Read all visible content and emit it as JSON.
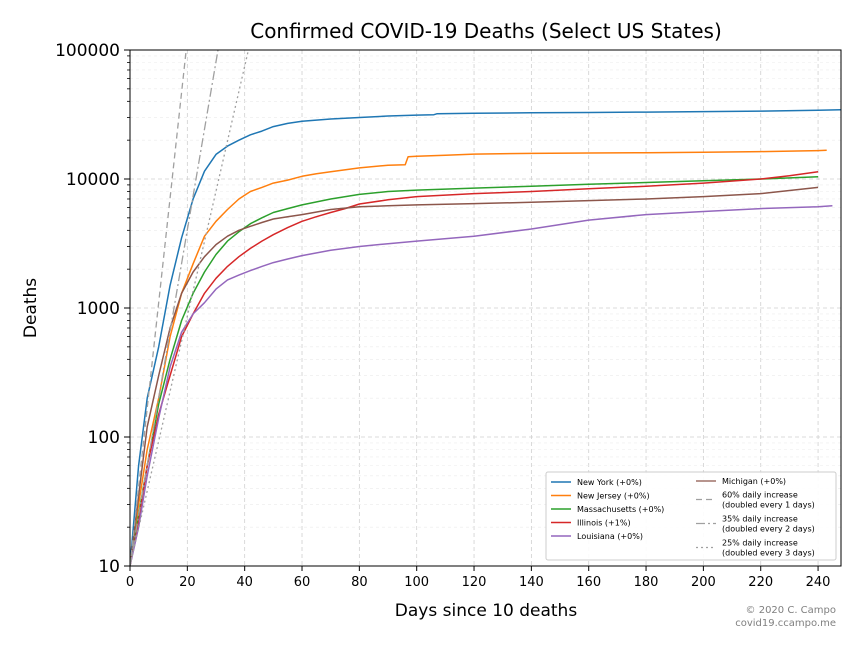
{
  "chart_data": {
    "type": "line",
    "title": "Confirmed COVID-19 Deaths (Select US States)",
    "xlabel": "Days since 10 deaths",
    "ylabel": "Deaths",
    "xlim": [
      0,
      248
    ],
    "ylim": [
      10,
      100000
    ],
    "yscale": "log",
    "xticks": [
      "0",
      "20",
      "40",
      "60",
      "80",
      "100",
      "120",
      "140",
      "160",
      "180",
      "200",
      "220",
      "240"
    ],
    "yticks": [
      "10",
      "100",
      "1000",
      "10000",
      "100000"
    ],
    "grid": true,
    "legend_position": "bottom-right",
    "series": [
      {
        "name": "New York (+0%)",
        "color": "#1f77b4",
        "style": "solid",
        "x": [
          0,
          3,
          6,
          10,
          14,
          18,
          22,
          26,
          30,
          34,
          38,
          42,
          46,
          50,
          55,
          60,
          70,
          80,
          90,
          100,
          106,
          107,
          120,
          140,
          160,
          180,
          200,
          220,
          240,
          248
        ],
        "y": [
          10,
          60,
          200,
          500,
          1500,
          3500,
          7000,
          11500,
          15500,
          18000,
          20000,
          22000,
          23500,
          25500,
          27000,
          28000,
          29200,
          30000,
          30800,
          31300,
          31500,
          32000,
          32300,
          32600,
          32800,
          33000,
          33300,
          33600,
          34100,
          34400
        ]
      },
      {
        "name": "New Jersey (+0%)",
        "color": "#ff7f0e",
        "style": "solid",
        "x": [
          0,
          3,
          6,
          10,
          14,
          18,
          22,
          26,
          30,
          34,
          38,
          42,
          46,
          50,
          55,
          60,
          65,
          70,
          80,
          90,
          96,
          97,
          100,
          110,
          120,
          140,
          160,
          180,
          200,
          220,
          240,
          243
        ],
        "y": [
          10,
          30,
          80,
          200,
          600,
          1300,
          2200,
          3600,
          4700,
          5800,
          7000,
          8000,
          8600,
          9300,
          9800,
          10500,
          11000,
          11400,
          12200,
          12800,
          12900,
          14900,
          15000,
          15300,
          15600,
          15800,
          15900,
          16000,
          16100,
          16300,
          16600,
          16700
        ]
      },
      {
        "name": "Massachusetts (+0%)",
        "color": "#2ca02c",
        "style": "solid",
        "x": [
          0,
          3,
          6,
          10,
          14,
          18,
          22,
          26,
          30,
          34,
          38,
          42,
          46,
          50,
          55,
          60,
          70,
          80,
          90,
          100,
          120,
          140,
          160,
          180,
          200,
          220,
          240
        ],
        "y": [
          10,
          25,
          60,
          180,
          400,
          800,
          1300,
          1900,
          2600,
          3300,
          3900,
          4500,
          5000,
          5500,
          5900,
          6300,
          7000,
          7600,
          8000,
          8200,
          8500,
          8800,
          9100,
          9400,
          9700,
          10000,
          10400
        ]
      },
      {
        "name": "Illinois (+1%)",
        "color": "#d62728",
        "style": "solid",
        "x": [
          0,
          3,
          6,
          10,
          14,
          18,
          22,
          26,
          30,
          34,
          38,
          42,
          46,
          50,
          55,
          60,
          65,
          70,
          75,
          80,
          90,
          100,
          120,
          140,
          160,
          180,
          200,
          220,
          230,
          240
        ],
        "y": [
          10,
          22,
          60,
          150,
          300,
          600,
          900,
          1300,
          1700,
          2100,
          2500,
          2900,
          3300,
          3700,
          4200,
          4700,
          5100,
          5500,
          5900,
          6400,
          6900,
          7300,
          7700,
          8000,
          8400,
          8800,
          9300,
          10000,
          10600,
          11400
        ]
      },
      {
        "name": "Louisiana (+0%)",
        "color": "#9467bd",
        "style": "solid",
        "x": [
          0,
          3,
          6,
          10,
          14,
          18,
          22,
          26,
          30,
          34,
          38,
          42,
          46,
          50,
          55,
          60,
          70,
          80,
          90,
          100,
          120,
          140,
          160,
          180,
          200,
          220,
          240,
          245
        ],
        "y": [
          10,
          20,
          50,
          140,
          350,
          650,
          900,
          1100,
          1400,
          1650,
          1800,
          1950,
          2100,
          2250,
          2400,
          2550,
          2800,
          3000,
          3150,
          3300,
          3600,
          4100,
          4800,
          5300,
          5600,
          5900,
          6100,
          6200
        ]
      },
      {
        "name": "Michigan (+0%)",
        "color": "#8c564b",
        "style": "solid",
        "x": [
          0,
          3,
          6,
          10,
          14,
          18,
          22,
          26,
          30,
          34,
          38,
          42,
          46,
          50,
          55,
          60,
          70,
          80,
          90,
          100,
          120,
          140,
          160,
          180,
          200,
          220,
          240
        ],
        "y": [
          10,
          35,
          120,
          300,
          700,
          1300,
          1900,
          2500,
          3100,
          3600,
          4000,
          4300,
          4600,
          4900,
          5100,
          5300,
          5800,
          6100,
          6200,
          6300,
          6450,
          6600,
          6800,
          7000,
          7300,
          7700,
          8600
        ]
      },
      {
        "name": "60% daily increase\n(doubled every 1 days)",
        "color": "#a0a0a0",
        "style": "dashed",
        "x": [
          0,
          19.6
        ],
        "y": [
          10,
          100000
        ]
      },
      {
        "name": "35% daily increase\n(doubled every 2 days)",
        "color": "#a0a0a0",
        "style": "dashdot",
        "x": [
          0,
          30.7
        ],
        "y": [
          10,
          100000
        ]
      },
      {
        "name": "25% daily increase\n(doubled every 3 days)",
        "color": "#a0a0a0",
        "style": "dotted",
        "x": [
          0,
          41.3
        ],
        "y": [
          10,
          100000
        ]
      }
    ]
  },
  "credit": {
    "line1": "© 2020 C. Campo",
    "line2": "covid19.ccampo.me"
  }
}
